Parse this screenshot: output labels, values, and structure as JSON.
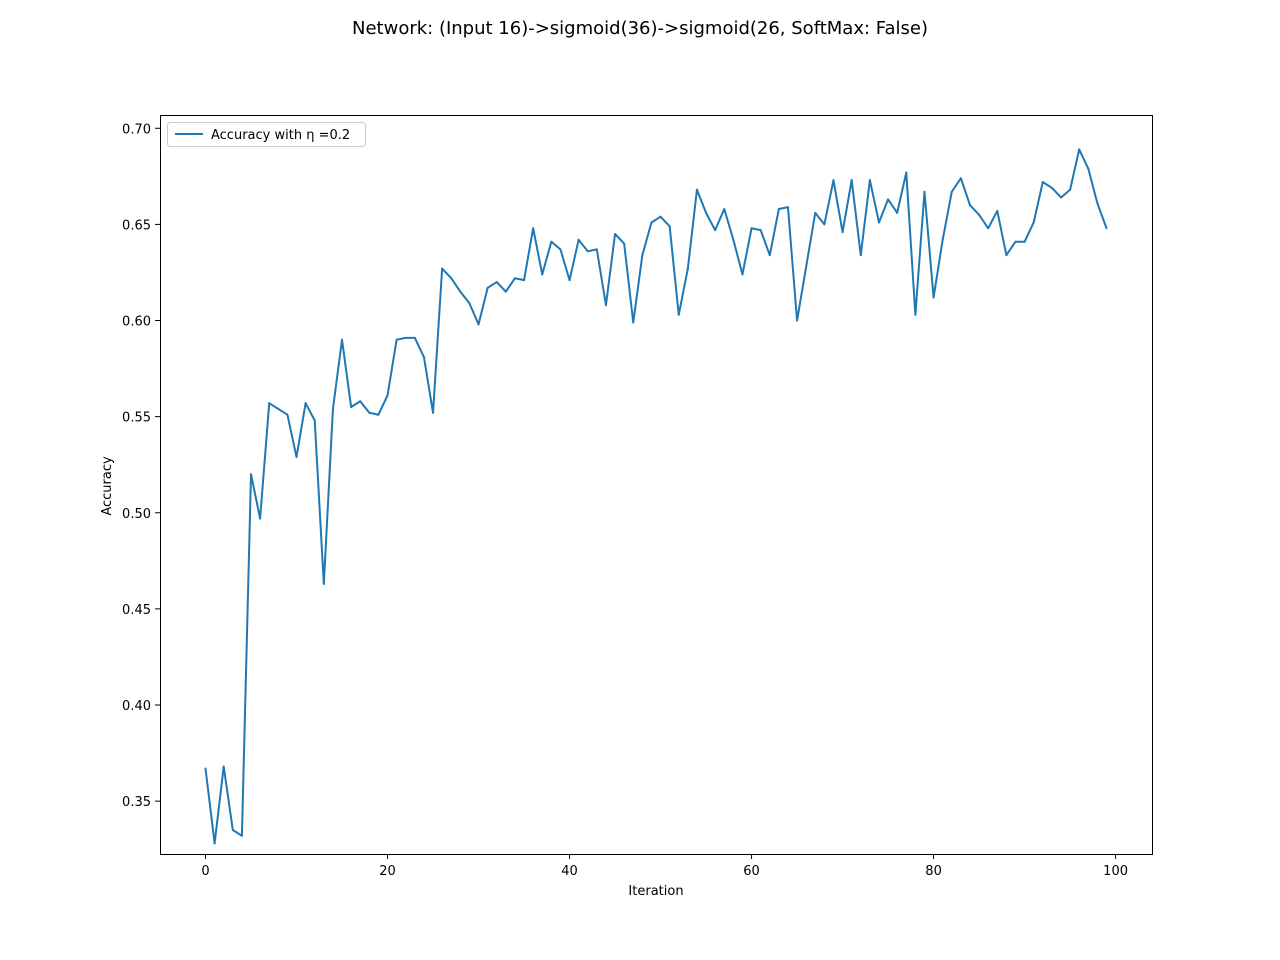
{
  "chart_data": {
    "type": "line",
    "title": "Network: (Input 16)->sigmoid(36)->sigmoid(26, SoftMax: False)",
    "xlabel": "Iteration",
    "ylabel": "Accuracy",
    "xlim": [
      -5,
      104
    ],
    "ylim": [
      0.3225,
      0.7069
    ],
    "xticks": [
      0,
      20,
      40,
      60,
      80,
      100
    ],
    "xtick_labels": [
      "0",
      "20",
      "40",
      "60",
      "80",
      "100"
    ],
    "yticks": [
      0.35,
      0.4,
      0.45,
      0.5,
      0.55,
      0.6,
      0.65,
      0.7
    ],
    "ytick_labels": [
      "0.35",
      "0.40",
      "0.45",
      "0.50",
      "0.55",
      "0.60",
      "0.65",
      "0.70"
    ],
    "grid": false,
    "legend_position": "top-left",
    "series": [
      {
        "name": "Accuracy with η =0.2",
        "color": "#1f77b4",
        "x": [
          0,
          1,
          2,
          3,
          4,
          5,
          6,
          7,
          8,
          9,
          10,
          11,
          12,
          13,
          14,
          15,
          16,
          17,
          18,
          19,
          20,
          21,
          22,
          23,
          24,
          25,
          26,
          27,
          28,
          29,
          30,
          31,
          32,
          33,
          34,
          35,
          36,
          37,
          38,
          39,
          40,
          41,
          42,
          43,
          44,
          45,
          46,
          47,
          48,
          49,
          50,
          51,
          52,
          53,
          54,
          55,
          56,
          57,
          58,
          59,
          60,
          61,
          62,
          63,
          64,
          65,
          66,
          67,
          68,
          69,
          70,
          71,
          72,
          73,
          74,
          75,
          76,
          77,
          78,
          79,
          80,
          81,
          82,
          83,
          84,
          85,
          86,
          87,
          88,
          89,
          90,
          91,
          92,
          93,
          94,
          95,
          96,
          97,
          98,
          99
        ],
        "values": [
          0.367,
          0.328,
          0.368,
          0.335,
          0.332,
          0.52,
          0.497,
          0.557,
          0.554,
          0.551,
          0.529,
          0.557,
          0.548,
          0.463,
          0.554,
          0.59,
          0.555,
          0.558,
          0.552,
          0.551,
          0.561,
          0.59,
          0.591,
          0.591,
          0.581,
          0.552,
          0.627,
          0.622,
          0.615,
          0.609,
          0.598,
          0.617,
          0.62,
          0.615,
          0.622,
          0.621,
          0.648,
          0.624,
          0.641,
          0.637,
          0.621,
          0.642,
          0.636,
          0.637,
          0.608,
          0.645,
          0.64,
          0.599,
          0.634,
          0.651,
          0.654,
          0.649,
          0.603,
          0.627,
          0.668,
          0.656,
          0.647,
          0.658,
          0.642,
          0.624,
          0.648,
          0.647,
          0.634,
          0.658,
          0.659,
          0.6,
          0.628,
          0.656,
          0.65,
          0.673,
          0.646,
          0.673,
          0.634,
          0.673,
          0.651,
          0.663,
          0.656,
          0.677,
          0.603,
          0.667,
          0.612,
          0.642,
          0.667,
          0.674,
          0.66,
          0.655,
          0.648,
          0.657,
          0.634,
          0.641,
          0.641,
          0.651,
          0.672,
          0.669,
          0.664,
          0.668,
          0.689,
          0.679,
          0.661,
          0.648
        ]
      }
    ]
  }
}
